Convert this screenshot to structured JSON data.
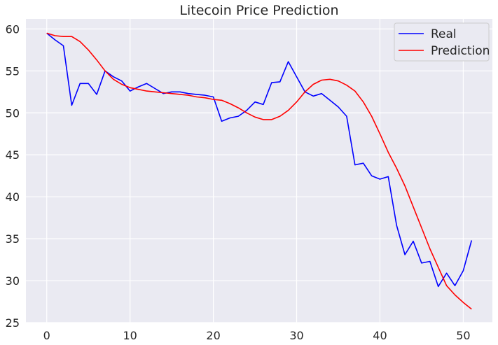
{
  "chart_data": {
    "type": "line",
    "title": "Litecoin Price Prediction",
    "xlabel": "",
    "ylabel": "",
    "xlim": [
      -2.5,
      53.5
    ],
    "ylim": [
      25,
      61.2
    ],
    "xticks": [
      0,
      10,
      20,
      30,
      40,
      50
    ],
    "yticks": [
      25,
      30,
      35,
      40,
      45,
      50,
      55,
      60
    ],
    "grid": true,
    "legend_position": "top-right",
    "x": [
      0,
      1,
      2,
      3,
      4,
      5,
      6,
      7,
      8,
      9,
      10,
      11,
      12,
      13,
      14,
      15,
      16,
      17,
      18,
      19,
      20,
      21,
      22,
      23,
      24,
      25,
      26,
      27,
      28,
      29,
      30,
      31,
      32,
      33,
      34,
      35,
      36,
      37,
      38,
      39,
      40,
      41,
      42,
      43,
      44,
      45,
      46,
      47,
      48,
      49,
      50,
      51
    ],
    "series": [
      {
        "name": "Real",
        "color": "#0000ff",
        "values": [
          59.5,
          58.7,
          58.0,
          50.9,
          53.5,
          53.5,
          52.2,
          55.0,
          54.3,
          53.8,
          52.6,
          53.1,
          53.5,
          52.9,
          52.3,
          52.5,
          52.5,
          52.3,
          52.2,
          52.1,
          51.9,
          49.0,
          49.4,
          49.6,
          50.3,
          51.3,
          51.0,
          53.6,
          53.7,
          56.1,
          54.3,
          52.5,
          52.0,
          52.3,
          51.5,
          50.7,
          49.6,
          43.8,
          44.0,
          42.5,
          42.1,
          42.4,
          36.6,
          33.1,
          34.7,
          32.1,
          32.3,
          29.3,
          30.9,
          29.4,
          31.2,
          34.8
        ]
      },
      {
        "name": "Prediction",
        "color": "#ff0000",
        "values": [
          59.5,
          59.2,
          59.1,
          59.1,
          58.5,
          57.5,
          56.3,
          55.0,
          54.0,
          53.4,
          53.0,
          52.8,
          52.6,
          52.5,
          52.4,
          52.3,
          52.2,
          52.1,
          51.9,
          51.8,
          51.6,
          51.5,
          51.1,
          50.6,
          50.0,
          49.5,
          49.2,
          49.2,
          49.6,
          50.3,
          51.3,
          52.5,
          53.4,
          53.9,
          54.0,
          53.8,
          53.3,
          52.6,
          51.3,
          49.6,
          47.5,
          45.3,
          43.4,
          41.3,
          38.8,
          36.3,
          33.8,
          31.6,
          29.4,
          28.3,
          27.4,
          26.6
        ]
      }
    ]
  }
}
